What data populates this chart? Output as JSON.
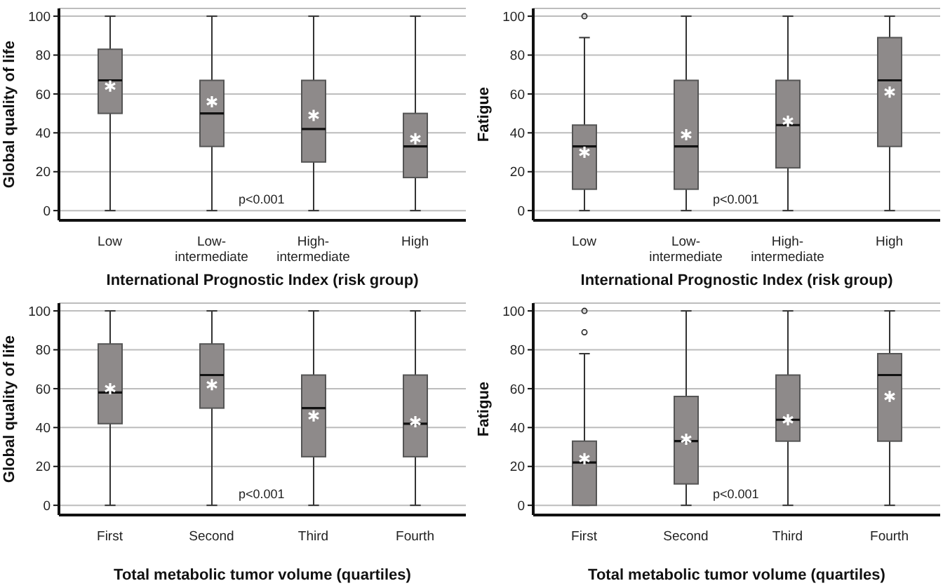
{
  "chart_data": [
    {
      "type": "box",
      "categories": [
        "Low",
        "Low-intermediate",
        "High-intermediate",
        "High"
      ],
      "xlabel": "International Prognostic Index (risk group)",
      "ylabel": "Global quality of life",
      "ylim": [
        -5,
        104
      ],
      "yticks": [
        0,
        20,
        40,
        60,
        80,
        100
      ],
      "grid": "y",
      "color": "#8e8a8a",
      "annotations": [
        "p<0.001"
      ],
      "boxes": [
        {
          "low": 0,
          "q1": 50,
          "median": 67,
          "q3": 83,
          "high": 100,
          "mean": 64
        },
        {
          "low": 0,
          "q1": 33,
          "median": 50,
          "q3": 67,
          "high": 100,
          "mean": 56
        },
        {
          "low": 0,
          "q1": 25,
          "median": 42,
          "q3": 67,
          "high": 100,
          "mean": 49
        },
        {
          "low": 0,
          "q1": 17,
          "median": 33,
          "q3": 50,
          "high": 100,
          "mean": 37
        }
      ]
    },
    {
      "type": "box",
      "categories": [
        "Low",
        "Low-intermediate",
        "High-intermediate",
        "High"
      ],
      "xlabel": "International Prognostic Index (risk group)",
      "ylabel": "Fatigue",
      "ylim": [
        -5,
        104
      ],
      "yticks": [
        0,
        20,
        40,
        60,
        80,
        100
      ],
      "grid": "y",
      "color": "#8e8a8a",
      "annotations": [
        "p<0.001"
      ],
      "boxes": [
        {
          "low": 0,
          "q1": 11,
          "median": 33,
          "q3": 44,
          "high": 89,
          "mean": 30,
          "outliers": [
            100
          ]
        },
        {
          "low": 0,
          "q1": 11,
          "median": 33,
          "q3": 67,
          "high": 100,
          "mean": 39
        },
        {
          "low": 0,
          "q1": 22,
          "median": 44,
          "q3": 67,
          "high": 100,
          "mean": 46
        },
        {
          "low": 0,
          "q1": 33,
          "median": 67,
          "q3": 89,
          "high": 100,
          "mean": 61
        }
      ]
    },
    {
      "type": "box",
      "categories": [
        "First",
        "Second",
        "Third",
        "Fourth"
      ],
      "xlabel": "Total metabolic tumor volume (quartiles)",
      "ylabel": "Global quality of life",
      "ylim": [
        -5,
        104
      ],
      "yticks": [
        0,
        20,
        40,
        60,
        80,
        100
      ],
      "grid": "y",
      "color": "#8e8a8a",
      "annotations": [
        "p<0.001"
      ],
      "boxes": [
        {
          "low": 0,
          "q1": 42,
          "median": 58,
          "q3": 83,
          "high": 100,
          "mean": 60
        },
        {
          "low": 0,
          "q1": 50,
          "median": 67,
          "q3": 83,
          "high": 100,
          "mean": 62
        },
        {
          "low": 0,
          "q1": 25,
          "median": 50,
          "q3": 67,
          "high": 100,
          "mean": 46
        },
        {
          "low": 0,
          "q1": 25,
          "median": 42,
          "q3": 67,
          "high": 100,
          "mean": 43
        }
      ]
    },
    {
      "type": "box",
      "categories": [
        "First",
        "Second",
        "Third",
        "Fourth"
      ],
      "xlabel": "Total metabolic tumor volume (quartiles)",
      "ylabel": "Fatigue",
      "ylim": [
        -5,
        104
      ],
      "yticks": [
        0,
        20,
        40,
        60,
        80,
        100
      ],
      "grid": "y",
      "color": "#8e8a8a",
      "annotations": [
        "p<0.001"
      ],
      "boxes": [
        {
          "low": 0,
          "q1": 0,
          "median": 22,
          "q3": 33,
          "high": 78,
          "mean": 24,
          "outliers": [
            89,
            100
          ]
        },
        {
          "low": 0,
          "q1": 11,
          "median": 33,
          "q3": 56,
          "high": 100,
          "mean": 34
        },
        {
          "low": 0,
          "q1": 33,
          "median": 44,
          "q3": 67,
          "high": 100,
          "mean": 44
        },
        {
          "low": 0,
          "q1": 33,
          "median": 67,
          "q3": 78,
          "high": 100,
          "mean": 56
        }
      ]
    }
  ]
}
